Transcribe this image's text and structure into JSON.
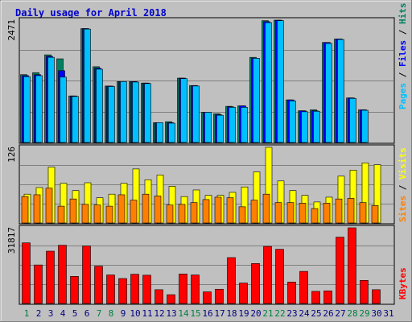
{
  "title": "Daily usage for April 2018",
  "colors": {
    "frame_bg": "#c0c0c0",
    "plot_bg": "#c0c0c0",
    "gridline": "#808080",
    "title": "#0000cc",
    "pages": "#00c0ff",
    "files": "#0000ff",
    "hits": "#008060",
    "visits": "#ffff00",
    "sites": "#ff8000",
    "kbytes": "#ff0000",
    "weekday_label": "#000080",
    "weekend_label": "#008040"
  },
  "labels": {
    "top": {
      "a": "Pages",
      "b": "Files",
      "c": "Hits",
      "sep": " / "
    },
    "mid": {
      "a": "Sites",
      "b": "Visits",
      "sep": " / "
    },
    "bottom": {
      "a": "KBytes"
    }
  },
  "chart_data": [
    {
      "type": "bar",
      "title": "Daily usage for April 2018",
      "ylabel": "2471",
      "ymax": 2471,
      "categories": [
        "1",
        "2",
        "3",
        "4",
        "5",
        "6",
        "7",
        "8",
        "9",
        "10",
        "11",
        "12",
        "13",
        "14",
        "15",
        "16",
        "17",
        "18",
        "19",
        "20",
        "21",
        "22",
        "23",
        "24",
        "25",
        "26",
        "27",
        "28",
        "29",
        "30",
        "31"
      ],
      "weekend_days": [
        "1",
        "7",
        "8",
        "14",
        "15",
        "21",
        "22",
        "28",
        "29"
      ],
      "series": [
        {
          "name": "Hits",
          "values": [
            1370,
            1410,
            1770,
            1690,
            940,
            2300,
            1530,
            1140,
            1230,
            1230,
            1200,
            400,
            420,
            1300,
            1150,
            610,
            580,
            730,
            740,
            1720,
            2460,
            2470,
            860,
            640,
            660,
            2020,
            2090,
            900,
            660,
            0,
            0
          ]
        },
        {
          "name": "Files",
          "values": [
            1350,
            1370,
            1740,
            1450,
            940,
            2300,
            1500,
            1140,
            1230,
            1230,
            1200,
            400,
            400,
            1300,
            1150,
            610,
            560,
            720,
            740,
            1700,
            2440,
            2470,
            860,
            640,
            640,
            2020,
            2090,
            900,
            660,
            0,
            0
          ]
        },
        {
          "name": "Pages",
          "values": [
            1330,
            1350,
            1720,
            1320,
            930,
            2290,
            1480,
            1130,
            1230,
            1220,
            1190,
            400,
            390,
            1290,
            1140,
            610,
            550,
            710,
            710,
            1700,
            2420,
            2460,
            840,
            620,
            630,
            2000,
            2080,
            890,
            650,
            0,
            0
          ]
        }
      ]
    },
    {
      "type": "bar",
      "ylabel": "126",
      "ymax": 126,
      "series": [
        {
          "name": "Visits",
          "values": [
            48,
            59,
            93,
            66,
            54,
            67,
            42,
            48,
            66,
            90,
            72,
            80,
            61,
            44,
            55,
            46,
            46,
            51,
            60,
            85,
            126,
            70,
            54,
            46,
            35,
            43,
            78,
            88,
            100,
            97,
            0
          ]
        },
        {
          "name": "Sites",
          "values": [
            44,
            47,
            58,
            28,
            40,
            31,
            30,
            28,
            47,
            38,
            48,
            45,
            30,
            31,
            34,
            39,
            43,
            42,
            27,
            38,
            48,
            34,
            34,
            33,
            24,
            33,
            40,
            41,
            34,
            29,
            0
          ]
        }
      ]
    },
    {
      "type": "bar",
      "ylabel": "31817",
      "ymax": 31817,
      "series": [
        {
          "name": "KBytes",
          "values": [
            25500,
            16200,
            22000,
            24500,
            11400,
            24200,
            15700,
            12000,
            10500,
            12300,
            11900,
            5800,
            3700,
            12400,
            12000,
            4900,
            6000,
            19300,
            8600,
            16800,
            24000,
            22800,
            9000,
            13500,
            5100,
            5300,
            27900,
            31817,
            9700,
            5800,
            0
          ]
        }
      ]
    }
  ]
}
